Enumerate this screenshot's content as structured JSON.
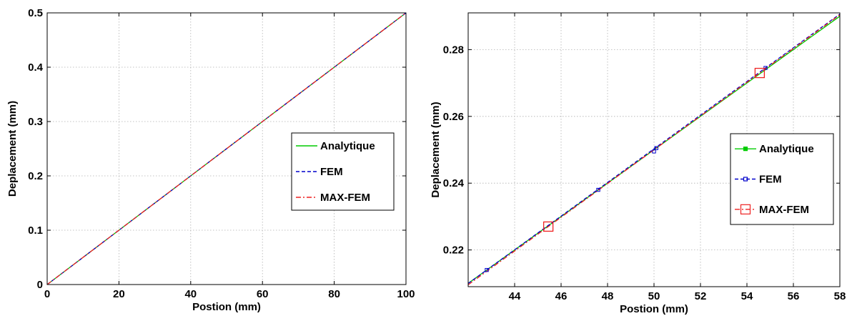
{
  "chart_data": [
    {
      "type": "line",
      "xlabel": "Postion (mm)",
      "ylabel": "Deplacement (mm)",
      "xlim": [
        0,
        100
      ],
      "ylim": [
        0,
        0.5
      ],
      "xticks": [
        "0",
        "20",
        "40",
        "60",
        "80",
        "100"
      ],
      "yticks": [
        "0",
        "0.1",
        "0.2",
        "0.3",
        "0.4",
        "0.5"
      ],
      "grid": true,
      "legend_position": "right",
      "series": [
        {
          "name": "Analytique",
          "color": "#00cc00",
          "style": "solid",
          "marker": "none",
          "x": [
            0,
            100
          ],
          "y": [
            0,
            0.5
          ]
        },
        {
          "name": "FEM",
          "color": "#0000cc",
          "style": "dashed",
          "marker": "none",
          "x": [
            0,
            100
          ],
          "y": [
            0,
            0.5
          ]
        },
        {
          "name": "MAX-FEM",
          "color": "#ee2222",
          "style": "dashdot",
          "marker": "none",
          "x": [
            0,
            100
          ],
          "y": [
            0,
            0.5
          ]
        }
      ]
    },
    {
      "type": "line",
      "xlabel": "Postion (mm)",
      "ylabel": "Deplacement (mm)",
      "xlim": [
        42,
        58
      ],
      "ylim": [
        0.209,
        0.291
      ],
      "xticks": [
        "44",
        "46",
        "48",
        "50",
        "52",
        "54",
        "56",
        "58"
      ],
      "yticks": [
        "0.22",
        "0.24",
        "0.26",
        "0.28"
      ],
      "grid": true,
      "legend_position": "right",
      "series": [
        {
          "name": "Analytique",
          "color": "#00cc00",
          "style": "solid",
          "marker": "small-square",
          "x": [
            42,
            58
          ],
          "y": [
            0.21,
            0.29
          ]
        },
        {
          "name": "FEM",
          "color": "#0000cc",
          "style": "dashed",
          "marker": "small-square",
          "x": [
            42.8,
            47.6,
            50.0,
            50.1,
            54.8
          ],
          "y": [
            0.214,
            0.238,
            0.2495,
            0.2505,
            0.2745
          ]
        },
        {
          "name": "MAX-FEM",
          "color": "#ee2222",
          "style": "dashdot",
          "marker": "large-square",
          "x": [
            45.45,
            54.55
          ],
          "y": [
            0.227,
            0.273
          ]
        }
      ]
    }
  ]
}
